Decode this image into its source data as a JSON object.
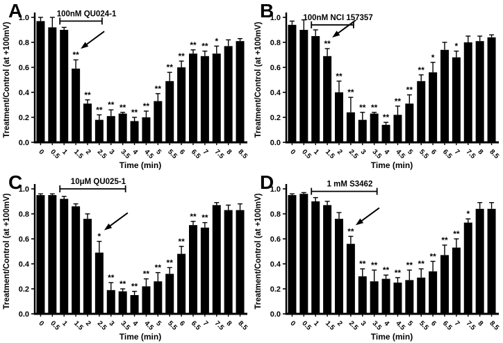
{
  "figure": {
    "background": "#ffffff",
    "ink": "#000000",
    "xlabel": "Time  (min)",
    "ylabel": "Treatment/Control (at +100mV)",
    "yticks": [
      0.0,
      0.2,
      0.4,
      0.6,
      0.8,
      1.0
    ],
    "ylim": [
      0,
      1.0
    ],
    "significance_symbols": [
      "*",
      "**"
    ]
  },
  "chart_data": [
    {
      "type": "bar",
      "panel": "A",
      "title": "100nM QU024-1",
      "xlabel": "Time  (min)",
      "ylabel": "Treatment/Control (at +100mV)",
      "ylim": [
        0,
        1.0
      ],
      "yticks": [
        0.0,
        0.2,
        0.4,
        0.6,
        0.8,
        1.0
      ],
      "categories": [
        "0",
        "0.5",
        "1",
        "1.5",
        "2",
        "2.5",
        "3",
        "3.5",
        "4",
        "4.5",
        "5",
        "5.5",
        "6",
        "6.5",
        "7",
        "7.5",
        "8",
        "8.5"
      ],
      "values": [
        0.97,
        0.92,
        0.9,
        0.59,
        0.31,
        0.18,
        0.21,
        0.23,
        0.17,
        0.2,
        0.33,
        0.49,
        0.6,
        0.71,
        0.69,
        0.71,
        0.77,
        0.81
      ],
      "errors": [
        0.03,
        0.08,
        0.02,
        0.07,
        0.03,
        0.04,
        0.05,
        0.01,
        0.03,
        0.05,
        0.06,
        0.07,
        0.05,
        0.03,
        0.04,
        0.06,
        0.05,
        0.02
      ],
      "significance": [
        "",
        "",
        "",
        "**",
        "**",
        "**",
        "**",
        "**",
        "**",
        "**",
        "**",
        "**",
        "**",
        "**",
        "**",
        "*",
        "",
        ""
      ],
      "bracket": {
        "from": "1",
        "to": "2.5",
        "label": "100nM QU024-1",
        "level": 0.97
      },
      "arrow_at": "1.5",
      "legend": null,
      "grid": false
    },
    {
      "type": "bar",
      "panel": "B",
      "title": "100nM NCI 157357",
      "xlabel": "Time  (min)",
      "ylabel": "Treatment/Control (at +100mV)",
      "ylim": [
        0,
        1.0
      ],
      "yticks": [
        0.0,
        0.2,
        0.4,
        0.6,
        0.8,
        1.0
      ],
      "categories": [
        "0",
        "0.5",
        "1",
        "1.5",
        "2",
        "2.5",
        "3",
        "3.5",
        "4",
        "4.5",
        "5",
        "5.5",
        "6",
        "6.5",
        "7",
        "7.5",
        "8",
        "8.5"
      ],
      "values": [
        0.94,
        0.9,
        0.85,
        0.69,
        0.4,
        0.24,
        0.18,
        0.23,
        0.14,
        0.22,
        0.31,
        0.49,
        0.56,
        0.74,
        0.68,
        0.8,
        0.81,
        0.84
      ],
      "errors": [
        0.03,
        0.08,
        0.05,
        0.06,
        0.09,
        0.12,
        0.06,
        0.01,
        0.02,
        0.07,
        0.07,
        0.05,
        0.08,
        0.06,
        0.05,
        0.05,
        0.04,
        0.02
      ],
      "significance": [
        "",
        "",
        "",
        "**",
        "**",
        "**",
        "**",
        "**",
        "**",
        "**",
        "**",
        "**",
        "*",
        "",
        "*",
        "",
        "",
        ""
      ],
      "bracket": {
        "from": "1",
        "to": "2.5",
        "label": "100nM NCI 157357",
        "level": 0.94
      },
      "arrow_at": "1.5",
      "legend": null,
      "grid": false
    },
    {
      "type": "bar",
      "panel": "C",
      "title": "10μM QU025-1",
      "xlabel": "Time  (min)",
      "ylabel": "Treatment/Control (at +100mV)",
      "ylim": [
        0,
        1.0
      ],
      "yticks": [
        0.0,
        0.2,
        0.4,
        0.6,
        0.8,
        1.0
      ],
      "categories": [
        "0",
        "0.5",
        "1",
        "1.5",
        "2",
        "2.5",
        "3",
        "3.5",
        "4",
        "4.5",
        "5",
        "5.5",
        "6",
        "6.5",
        "7",
        "7.5",
        "8",
        "8.5"
      ],
      "values": [
        0.95,
        0.95,
        0.92,
        0.86,
        0.76,
        0.49,
        0.19,
        0.18,
        0.15,
        0.22,
        0.26,
        0.32,
        0.48,
        0.71,
        0.69,
        0.87,
        0.83,
        0.83
      ],
      "errors": [
        0.01,
        0.01,
        0.02,
        0.02,
        0.04,
        0.09,
        0.06,
        0.02,
        0.03,
        0.06,
        0.07,
        0.05,
        0.06,
        0.03,
        0.04,
        0.02,
        0.04,
        0.05
      ],
      "significance": [
        "",
        "",
        "",
        "",
        "",
        "*",
        "**",
        "**",
        "**",
        "**",
        "**",
        "**",
        "**",
        "**",
        "**",
        "",
        "",
        ""
      ],
      "bracket": {
        "from": "1",
        "to": "3.5",
        "label": "10μM QU025-1",
        "level": 1.0
      },
      "arrow_at": "2.5",
      "legend": null,
      "grid": false
    },
    {
      "type": "bar",
      "panel": "D",
      "title": "1 mM  S3462",
      "xlabel": "Time  (min)",
      "ylabel": "Treatment/Control (at +100mV)",
      "ylim": [
        0,
        1.0
      ],
      "yticks": [
        0.0,
        0.2,
        0.4,
        0.6,
        0.8,
        1.0
      ],
      "categories": [
        "0",
        "0.5",
        "1",
        "1.5",
        "2",
        "2.5",
        "3",
        "3.5",
        "4",
        "4.5",
        "5",
        "5.5",
        "6",
        "6.5",
        "7",
        "7.5",
        "8",
        "8.5"
      ],
      "values": [
        0.95,
        0.96,
        0.9,
        0.87,
        0.76,
        0.56,
        0.3,
        0.26,
        0.28,
        0.25,
        0.27,
        0.29,
        0.34,
        0.47,
        0.53,
        0.73,
        0.84,
        0.84
      ],
      "errors": [
        0.01,
        0.01,
        0.03,
        0.03,
        0.05,
        0.06,
        0.06,
        0.09,
        0.03,
        0.04,
        0.08,
        0.07,
        0.08,
        0.08,
        0.07,
        0.03,
        0.05,
        0.05
      ],
      "significance": [
        "",
        "",
        "",
        "",
        "",
        "**",
        "**",
        "**",
        "**",
        "**",
        "**",
        "**",
        "**",
        "**",
        "**",
        "*",
        "",
        ""
      ],
      "bracket": {
        "from": "1",
        "to": "3.5",
        "label": "1 mM  S3462",
        "level": 0.98
      },
      "arrow_at": "2.5",
      "legend": null,
      "grid": false
    }
  ]
}
